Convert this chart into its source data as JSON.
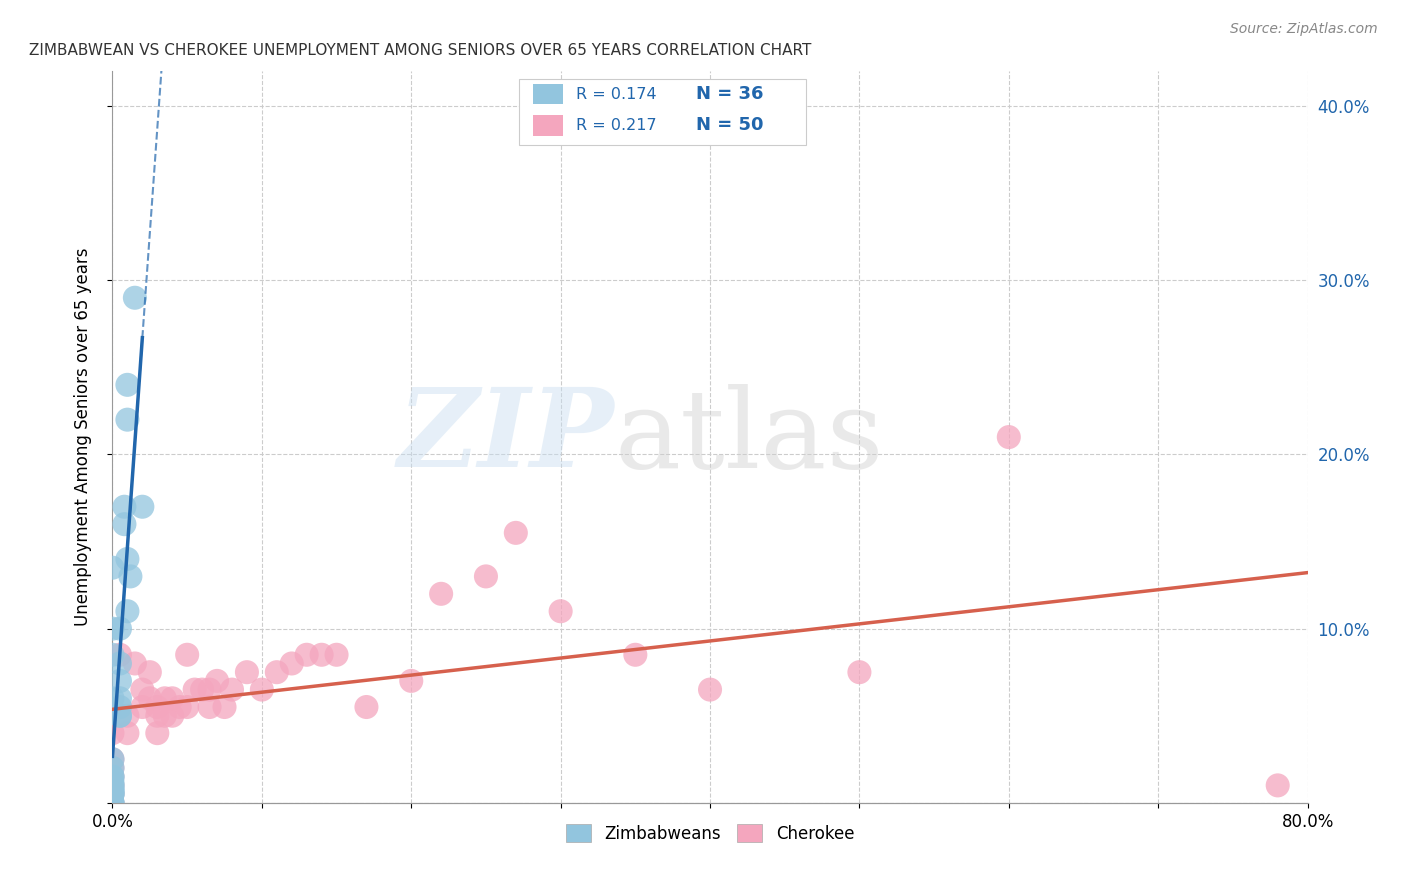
{
  "title": "ZIMBABWEAN VS CHEROKEE UNEMPLOYMENT AMONG SENIORS OVER 65 YEARS CORRELATION CHART",
  "source": "Source: ZipAtlas.com",
  "ylabel": "Unemployment Among Seniors over 65 years",
  "xlim": [
    0.0,
    0.8
  ],
  "ylim": [
    0.0,
    0.42
  ],
  "xticks": [
    0.0,
    0.1,
    0.2,
    0.3,
    0.4,
    0.5,
    0.6,
    0.7,
    0.8
  ],
  "xticklabels": [
    "0.0%",
    "",
    "",
    "",
    "",
    "",
    "",
    "",
    "80.0%"
  ],
  "yticks": [
    0.0,
    0.1,
    0.2,
    0.3,
    0.4
  ],
  "yticklabels_right": [
    "",
    "10.0%",
    "20.0%",
    "30.0%",
    "40.0%"
  ],
  "legend_r1": "R = 0.174",
  "legend_n1": "N = 36",
  "legend_r2": "R = 0.217",
  "legend_n2": "N = 50",
  "blue_color": "#92c5de",
  "pink_color": "#f4a6be",
  "blue_line_color": "#2166ac",
  "pink_line_color": "#d6604d",
  "text_blue": "#2166ac",
  "zim_x": [
    0.0,
    0.0,
    0.0,
    0.0,
    0.0,
    0.0,
    0.0,
    0.0,
    0.0,
    0.0,
    0.0,
    0.0,
    0.0,
    0.0,
    0.0,
    0.0,
    0.0,
    0.0,
    0.0,
    0.0,
    0.005,
    0.005,
    0.005,
    0.005,
    0.005,
    0.005,
    0.005,
    0.008,
    0.008,
    0.01,
    0.01,
    0.01,
    0.01,
    0.012,
    0.015,
    0.02
  ],
  "zim_y": [
    0.0,
    0.0,
    0.0,
    0.005,
    0.005,
    0.005,
    0.007,
    0.007,
    0.008,
    0.01,
    0.01,
    0.012,
    0.015,
    0.015,
    0.02,
    0.025,
    0.06,
    0.085,
    0.1,
    0.135,
    0.05,
    0.05,
    0.055,
    0.06,
    0.07,
    0.08,
    0.1,
    0.16,
    0.17,
    0.11,
    0.14,
    0.22,
    0.24,
    0.13,
    0.29,
    0.17
  ],
  "cher_x": [
    0.0,
    0.0,
    0.0,
    0.0,
    0.0,
    0.0,
    0.0,
    0.005,
    0.01,
    0.01,
    0.015,
    0.02,
    0.02,
    0.025,
    0.025,
    0.03,
    0.03,
    0.03,
    0.035,
    0.035,
    0.04,
    0.04,
    0.045,
    0.05,
    0.05,
    0.055,
    0.06,
    0.065,
    0.065,
    0.07,
    0.075,
    0.08,
    0.09,
    0.1,
    0.11,
    0.12,
    0.13,
    0.14,
    0.15,
    0.17,
    0.2,
    0.22,
    0.25,
    0.27,
    0.3,
    0.35,
    0.4,
    0.5,
    0.6,
    0.78
  ],
  "cher_y": [
    0.0,
    0.005,
    0.01,
    0.015,
    0.02,
    0.025,
    0.04,
    0.085,
    0.04,
    0.05,
    0.08,
    0.055,
    0.065,
    0.06,
    0.075,
    0.04,
    0.05,
    0.055,
    0.05,
    0.06,
    0.05,
    0.06,
    0.055,
    0.055,
    0.085,
    0.065,
    0.065,
    0.055,
    0.065,
    0.07,
    0.055,
    0.065,
    0.075,
    0.065,
    0.075,
    0.08,
    0.085,
    0.085,
    0.085,
    0.055,
    0.07,
    0.12,
    0.13,
    0.155,
    0.11,
    0.085,
    0.065,
    0.075,
    0.21,
    0.01
  ]
}
